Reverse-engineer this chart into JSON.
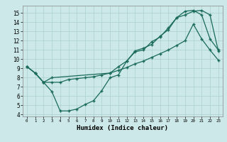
{
  "title": "",
  "xlabel": "Humidex (Indice chaleur)",
  "bg_color": "#cce8e8",
  "grid_color": "#aacfcf",
  "line_color": "#1a6b5a",
  "xlim": [
    -0.5,
    23.5
  ],
  "ylim": [
    3.8,
    15.8
  ],
  "yticks": [
    4,
    5,
    6,
    7,
    8,
    9,
    10,
    11,
    12,
    13,
    14,
    15
  ],
  "xticks": [
    0,
    1,
    2,
    3,
    4,
    5,
    6,
    7,
    8,
    9,
    10,
    11,
    12,
    13,
    14,
    15,
    16,
    17,
    18,
    19,
    20,
    21,
    22,
    23
  ],
  "line1_x": [
    0,
    1,
    2,
    3,
    4,
    5,
    6,
    7,
    8,
    9,
    10,
    11,
    12,
    13,
    14,
    15,
    16,
    17,
    18,
    19,
    20,
    21,
    22,
    23
  ],
  "line1_y": [
    9.2,
    8.5,
    7.5,
    6.5,
    4.4,
    4.4,
    4.6,
    5.1,
    5.5,
    6.6,
    8.0,
    8.3,
    9.8,
    10.9,
    11.2,
    11.6,
    12.5,
    13.2,
    14.5,
    14.8,
    15.2,
    15.3,
    14.8,
    10.9
  ],
  "line2_x": [
    0,
    1,
    2,
    3,
    10,
    11,
    12,
    13,
    14,
    15,
    16,
    17,
    18,
    19,
    20,
    21,
    22,
    23
  ],
  "line2_y": [
    9.2,
    8.5,
    7.5,
    8.0,
    8.5,
    9.2,
    9.8,
    10.8,
    11.0,
    11.9,
    12.4,
    13.4,
    14.5,
    15.2,
    15.3,
    14.8,
    12.2,
    11.0
  ],
  "line3_x": [
    0,
    1,
    2,
    3,
    4,
    5,
    6,
    7,
    8,
    9,
    10,
    11,
    12,
    13,
    14,
    15,
    16,
    17,
    18,
    19,
    20,
    21,
    22,
    23
  ],
  "line3_y": [
    9.2,
    8.5,
    7.5,
    7.5,
    7.5,
    7.8,
    7.9,
    8.0,
    8.1,
    8.3,
    8.5,
    8.8,
    9.1,
    9.5,
    9.8,
    10.2,
    10.6,
    11.0,
    11.5,
    12.0,
    13.8,
    12.2,
    11.0,
    9.9
  ]
}
